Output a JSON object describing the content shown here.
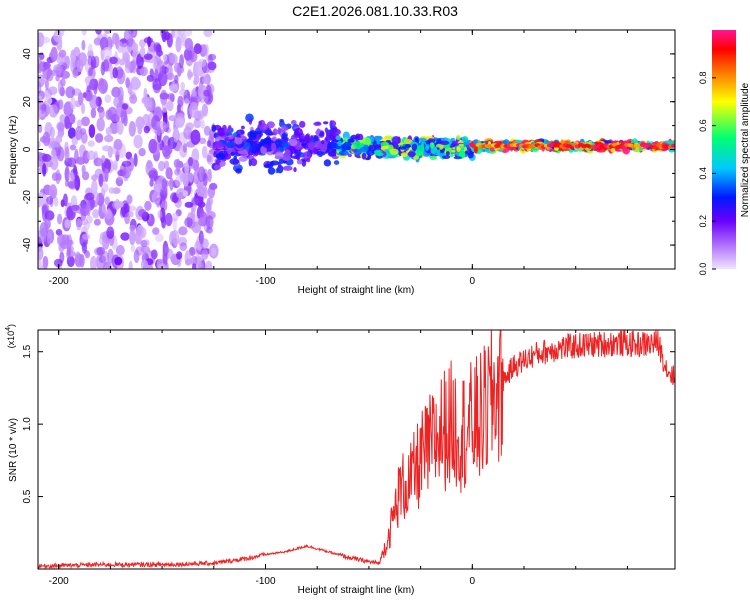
{
  "title": "C2E1.2026.081.10.33.R03",
  "chart_data": [
    {
      "type": "heatmap",
      "xlabel": "Height of straight line (km)",
      "ylabel": "Frequency (Hz)",
      "xlim": [
        -210,
        98
      ],
      "ylim": [
        -50,
        50
      ],
      "x_ticks": [
        "-200",
        "-100",
        "0"
      ],
      "y_ticks": [
        "40",
        "20",
        "0",
        "-20",
        "-40"
      ],
      "colorbar_label": "Normalized spectral amplitude",
      "colorbar_range": [
        0,
        1
      ],
      "colorbar_ticks": [
        "0.0",
        "0.2",
        "0.4",
        "0.6",
        "0.8"
      ],
      "colormap": [
        "#f0e4ff",
        "#b070ff",
        "#6a00ff",
        "#0018ff",
        "#00c8ff",
        "#00ff70",
        "#ffff00",
        "#ff7a00",
        "#ff0000",
        "#ff1493"
      ],
      "signal": {
        "description_free_bands": [
          {
            "x_from": -210,
            "x_to": -125,
            "freq_center": 0,
            "freq_spread": 50,
            "amplitude": 0.15
          },
          {
            "x_from": -125,
            "x_to": -65,
            "freq_center": 2,
            "freq_spread": 12,
            "amplitude": 0.3
          },
          {
            "x_from": -65,
            "x_to": 0,
            "freq_center": 1,
            "freq_spread": 5,
            "amplitude": 0.55
          },
          {
            "x_from": 0,
            "x_to": 98,
            "freq_center": 1.5,
            "freq_spread": 2,
            "amplitude": 0.85
          }
        ]
      }
    },
    {
      "type": "line",
      "xlabel": "Height of straight line (km)",
      "ylabel": "SNR (10 * v/v)",
      "y_multiplier": "(x10^4)",
      "xlim": [
        -210,
        98
      ],
      "ylim": [
        0,
        1.65
      ],
      "x_ticks": [
        "-200",
        "-100",
        "0"
      ],
      "y_ticks": [
        "1.5",
        "1.0",
        "0.5"
      ],
      "color": "#ee2222",
      "series": [
        {
          "x": [
            -210,
            -180,
            -150,
            -125,
            -110,
            -100,
            -90,
            -80,
            -70,
            -60,
            -50,
            -45,
            -40,
            -35,
            -30,
            -25,
            -20,
            -15,
            -10,
            -5,
            0,
            5,
            10,
            15,
            20,
            30,
            40,
            50,
            60,
            70,
            80,
            90,
            94,
            98
          ],
          "values": [
            0.02,
            0.03,
            0.03,
            0.04,
            0.07,
            0.1,
            0.12,
            0.16,
            0.12,
            0.08,
            0.05,
            0.04,
            0.25,
            0.55,
            0.6,
            0.75,
            0.85,
            0.95,
            1.0,
            0.95,
            1.0,
            1.05,
            1.2,
            1.3,
            1.4,
            1.48,
            1.52,
            1.54,
            1.55,
            1.56,
            1.55,
            1.56,
            1.38,
            1.32
          ]
        }
      ]
    }
  ]
}
